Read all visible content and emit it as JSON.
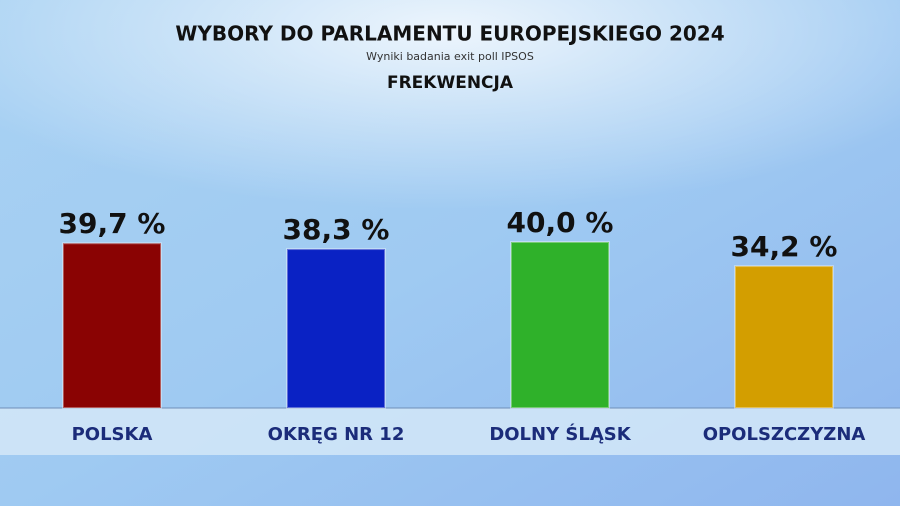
{
  "chart_data": {
    "type": "bar",
    "title": "WYBORY DO PARLAMENTU EUROPEJSKIEGO 2024",
    "subtitle": "Wyniki badania exit poll IPSOS",
    "heading": "FREKWENCJA",
    "categories": [
      "POLSKA",
      "OKRĘG NR 12",
      "DOLNY ŚLĄSK",
      "OPOLSZCZYZNA"
    ],
    "values": [
      39.7,
      38.3,
      40.0,
      34.2
    ],
    "value_labels": [
      "39,7 %",
      "38,3 %",
      "40,0 %",
      "34,2 %"
    ],
    "colors": [
      "#8a0303",
      "#0a22c4",
      "#2fb12a",
      "#d39e00"
    ]
  }
}
